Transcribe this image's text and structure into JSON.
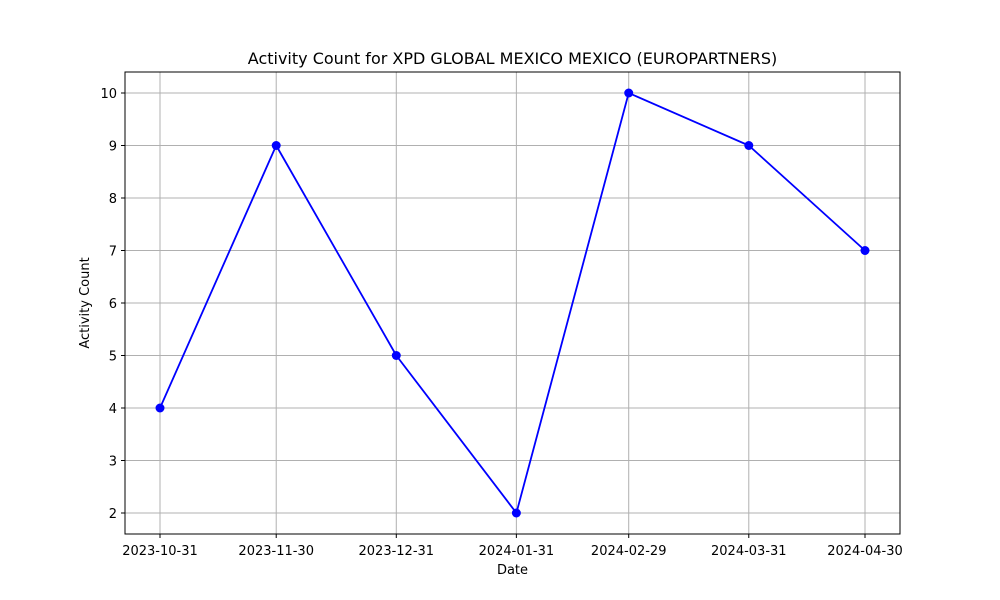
{
  "chart_data": {
    "type": "line",
    "title": "Activity Count for XPD GLOBAL MEXICO MEXICO (EUROPARTNERS)",
    "xlabel": "Date",
    "ylabel": "Activity Count",
    "x": [
      "2023-10-31",
      "2023-11-30",
      "2023-12-31",
      "2024-01-31",
      "2024-02-29",
      "2024-03-31",
      "2024-04-30"
    ],
    "series": [
      {
        "values": [
          4,
          9,
          5,
          2,
          10,
          9,
          7
        ],
        "color": "#0000ff",
        "marker": "circle"
      }
    ],
    "yticks": [
      2,
      3,
      4,
      5,
      6,
      7,
      8,
      9,
      10
    ],
    "ylim": [
      1.6,
      10.4
    ],
    "grid": true,
    "legend": "none"
  }
}
